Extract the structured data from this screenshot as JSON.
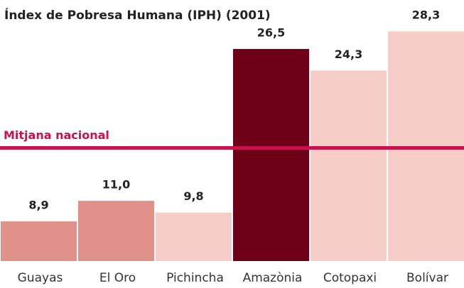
{
  "chart_data": {
    "type": "bar",
    "title": "Índex de Pobresa Humana (IPH) (2001)",
    "categories": [
      "Guayas",
      "El Oro",
      "Pichincha",
      "Amazònia",
      "Cotopaxi",
      "Bolívar"
    ],
    "values": [
      8.9,
      11.0,
      9.8,
      26.5,
      24.3,
      28.3
    ],
    "value_labels": [
      "8,9",
      "11,0",
      "9,8",
      "26,5",
      "24,3",
      "28,3"
    ],
    "colors": [
      "#e0928a",
      "#e0928a",
      "#f6cec7",
      "#6e0017",
      "#f6cec7",
      "#f6cec7"
    ],
    "ylim": [
      4.85,
      31.5
    ],
    "reference_line": {
      "label": "Mitjana nacional",
      "value": 16.4,
      "color": "#c8124c"
    }
  }
}
